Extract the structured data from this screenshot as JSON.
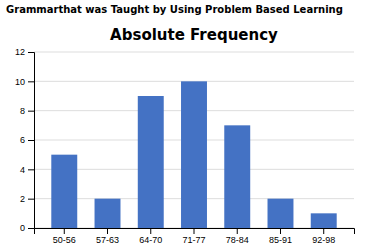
{
  "chart_data": {
    "type": "bar",
    "title": "Absolute Frequency",
    "subtitle": "Grammarthat was Taught by Using Problem Based Learning",
    "categories": [
      "50-56",
      "57-63",
      "64-70",
      "71-77",
      "78-84",
      "85-91",
      "92-98"
    ],
    "values": [
      5,
      2,
      9,
      10,
      7,
      2,
      1
    ],
    "color": "#4472C4",
    "ylim": [
      0,
      12
    ],
    "yticks": [
      0,
      2,
      4,
      6,
      8,
      10,
      12
    ],
    "grid": true
  }
}
